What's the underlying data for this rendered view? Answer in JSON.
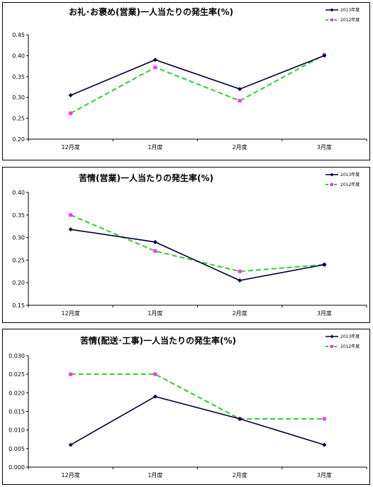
{
  "chart_data": [
    {
      "type": "line",
      "title": "お礼･お褒め(営業)一人当たりの発生率(%)",
      "categories": [
        "12月度",
        "1月度",
        "2月度",
        "3月度"
      ],
      "ylim": [
        0.2,
        0.45
      ],
      "yticks": [
        "0.20",
        "0.25",
        "0.30",
        "0.35",
        "0.40",
        "0.45"
      ],
      "grid": false,
      "legend": "top-right",
      "series": [
        {
          "name": "2013年度",
          "values": [
            0.305,
            0.39,
            0.32,
            0.4
          ],
          "color": "#000033",
          "style": "solid",
          "marker": "diamond"
        },
        {
          "name": "2012年度",
          "values": [
            0.262,
            0.372,
            0.292,
            0.402
          ],
          "color": "#33cc33",
          "marker_color": "#ff33ff",
          "style": "dashed",
          "marker": "square"
        }
      ]
    },
    {
      "type": "line",
      "title": "苦情(営業)一人当たりの発生率(%)",
      "categories": [
        "12月度",
        "1月度",
        "2月度",
        "3月度"
      ],
      "ylim": [
        0.15,
        0.4
      ],
      "yticks": [
        "0.15",
        "0.20",
        "0.25",
        "0.30",
        "0.35",
        "0.40"
      ],
      "grid": false,
      "legend": "top-right",
      "series": [
        {
          "name": "2013年度",
          "values": [
            0.318,
            0.29,
            0.205,
            0.24
          ],
          "color": "#000033",
          "style": "solid",
          "marker": "diamond"
        },
        {
          "name": "2012年度",
          "values": [
            0.35,
            0.27,
            0.225,
            0.24
          ],
          "color": "#33cc33",
          "marker_color": "#ff33ff",
          "style": "dashed",
          "marker": "square"
        }
      ]
    },
    {
      "type": "line",
      "title": "苦情(配送･工事)一人当たりの発生率(%)",
      "categories": [
        "12月度",
        "1月度",
        "2月度",
        "3月度"
      ],
      "ylim": [
        0.0,
        0.03
      ],
      "yticks": [
        "0.000",
        "0.005",
        "0.010",
        "0.015",
        "0.020",
        "0.025",
        "0.030"
      ],
      "grid": false,
      "legend": "top-right",
      "series": [
        {
          "name": "2013年度",
          "values": [
            0.006,
            0.019,
            0.013,
            0.006
          ],
          "color": "#000033",
          "style": "solid",
          "marker": "diamond"
        },
        {
          "name": "2012年度",
          "values": [
            0.025,
            0.025,
            0.013,
            0.013
          ],
          "color": "#33cc33",
          "marker_color": "#ff33ff",
          "style": "dashed",
          "marker": "square"
        }
      ]
    }
  ]
}
